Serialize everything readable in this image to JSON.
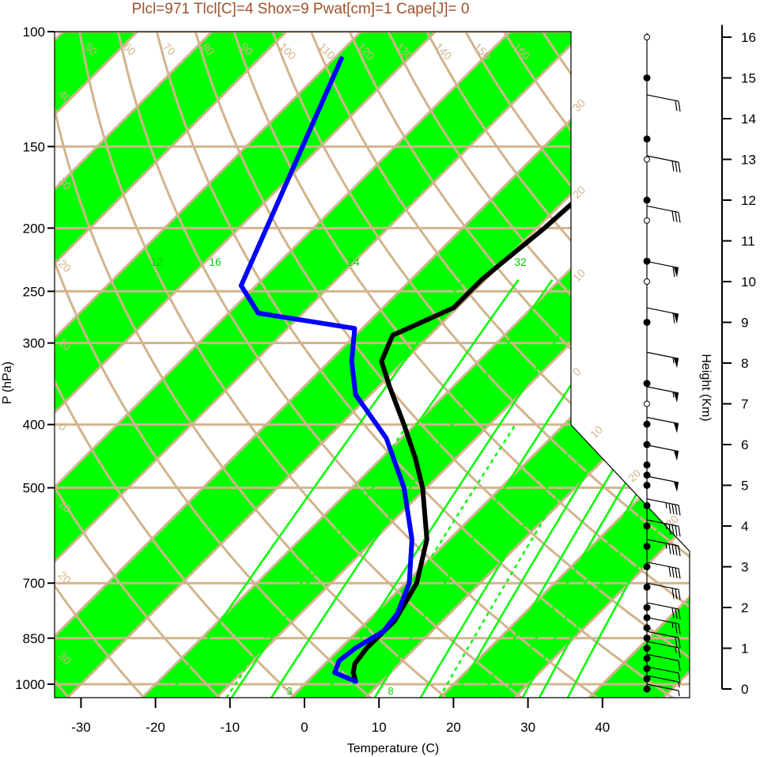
{
  "chart_data": {
    "type": "line",
    "title": "Plcl=971 Tlcl[C]=4 Shox=9 Pwat[cm]=1 Cape[J]= 0",
    "xlabel": "Temperature (C)",
    "ylabel": "P (hPa)",
    "y2label": "Height (Km)",
    "x_ticks": [
      "-30",
      "-20",
      "-10",
      "0",
      "10",
      "20",
      "30",
      "40"
    ],
    "x_tick_values": [
      -30,
      -20,
      -10,
      0,
      10,
      20,
      30,
      40
    ],
    "p_ticks": [
      "100",
      "150",
      "200",
      "250",
      "300",
      "400",
      "500",
      "700",
      "850",
      "1000"
    ],
    "p_tick_values": [
      100,
      150,
      200,
      250,
      300,
      400,
      500,
      700,
      850,
      1000
    ],
    "height_ticks": [
      "0",
      "1",
      "2",
      "3",
      "4",
      "5",
      "6",
      "7",
      "8",
      "9",
      "10",
      "11",
      "12",
      "13",
      "14",
      "15",
      "16"
    ],
    "height_tick_values": [
      0,
      1,
      2,
      3,
      4,
      5,
      6,
      7,
      8,
      9,
      10,
      11,
      12,
      13,
      14,
      15,
      16
    ],
    "isotherm_labels": {
      "top": [
        "50",
        "60",
        "70",
        "80",
        "90",
        "100",
        "110",
        "120",
        "130",
        "140",
        "150",
        "160"
      ],
      "right": [
        "30",
        "20",
        "10",
        "0",
        "10",
        "20",
        "30"
      ],
      "left": [
        "40",
        "30",
        "20",
        "10",
        "0",
        "10",
        "20",
        "30"
      ]
    },
    "mixing_ratio_labels": [
      "12",
      "16",
      "24",
      "32"
    ],
    "mixing_ratio_dashed_labels": [
      "3",
      "8"
    ],
    "colors": {
      "temperature": "#000000",
      "dewpoint": "#0000ff",
      "bands": "#00ff00",
      "isobars_isotherms": "#d2b48c",
      "mixing_ratio": "#00ff00",
      "title": "#a0522d"
    },
    "series": [
      {
        "name": "",
        "role": "temperature",
        "points": [
          {
            "p": 990,
            "t": 6.5
          },
          {
            "p": 960,
            "t": 5.0
          },
          {
            "p": 930,
            "t": 4.0
          },
          {
            "p": 880,
            "t": 3.5
          },
          {
            "p": 800,
            "t": 3.6
          },
          {
            "p": 700,
            "t": 1.5
          },
          {
            "p": 600,
            "t": -3.0
          },
          {
            "p": 500,
            "t": -10.5
          },
          {
            "p": 450,
            "t": -15.5
          },
          {
            "p": 400,
            "t": -21.5
          },
          {
            "p": 350,
            "t": -28.5
          },
          {
            "p": 320,
            "t": -33.0
          },
          {
            "p": 292,
            "t": -35.0
          },
          {
            "p": 265,
            "t": -30.5
          },
          {
            "p": 240,
            "t": -30.5
          },
          {
            "p": 225,
            "t": -30.0
          },
          {
            "p": 200,
            "t": -29.0
          },
          {
            "p": 180,
            "t": -28.5
          },
          {
            "p": 145,
            "t": -27.5
          },
          {
            "p": 120,
            "t": -28.0
          },
          {
            "p": 110,
            "t": -28.0
          }
        ]
      },
      {
        "name": "",
        "role": "dewpoint",
        "points": [
          {
            "p": 990,
            "t": 6.5
          },
          {
            "p": 960,
            "t": 2.5
          },
          {
            "p": 920,
            "t": 1.5
          },
          {
            "p": 880,
            "t": 2.0
          },
          {
            "p": 830,
            "t": 3.5
          },
          {
            "p": 780,
            "t": 3.0
          },
          {
            "p": 700,
            "t": 0.5
          },
          {
            "p": 600,
            "t": -5.0
          },
          {
            "p": 500,
            "t": -13.0
          },
          {
            "p": 420,
            "t": -22.0
          },
          {
            "p": 360,
            "t": -32.0
          },
          {
            "p": 320,
            "t": -37.0
          },
          {
            "p": 285,
            "t": -41.0
          },
          {
            "p": 270,
            "t": -56.0
          },
          {
            "p": 245,
            "t": -62.0
          },
          {
            "p": 110,
            "t": -79.0
          }
        ]
      }
    ],
    "wind": {
      "levels": [
        {
          "p": 1000,
          "dir": 225,
          "spd": 5
        },
        {
          "p": 970,
          "dir": 225,
          "spd": 5
        },
        {
          "p": 940,
          "dir": 240,
          "spd": 10
        },
        {
          "p": 900,
          "dir": 250,
          "spd": 10
        },
        {
          "p": 860,
          "dir": 260,
          "spd": 15
        },
        {
          "p": 830,
          "dir": 265,
          "spd": 20
        },
        {
          "p": 790,
          "dir": 270,
          "spd": 25
        },
        {
          "p": 750,
          "dir": 270,
          "spd": 30
        },
        {
          "p": 700,
          "dir": 270,
          "spd": 30
        },
        {
          "p": 650,
          "dir": 270,
          "spd": 40
        },
        {
          "p": 600,
          "dir": 275,
          "spd": 45
        },
        {
          "p": 560,
          "dir": 275,
          "spd": 45
        },
        {
          "p": 520,
          "dir": 275,
          "spd": 45
        },
        {
          "p": 480,
          "dir": 275,
          "spd": 50
        },
        {
          "p": 430,
          "dir": 275,
          "spd": 50
        },
        {
          "p": 390,
          "dir": 275,
          "spd": 50
        },
        {
          "p": 350,
          "dir": 275,
          "spd": 55
        },
        {
          "p": 310,
          "dir": 275,
          "spd": 55
        },
        {
          "p": 265,
          "dir": 275,
          "spd": 60
        },
        {
          "p": 225,
          "dir": 275,
          "spd": 60
        },
        {
          "p": 185,
          "dir": 275,
          "spd": 30
        },
        {
          "p": 155,
          "dir": 275,
          "spd": 30
        },
        {
          "p": 125,
          "dir": 275,
          "spd": 20
        }
      ],
      "filled_marker_heights_km": [
        0,
        0.25,
        0.5,
        0.75,
        1.0,
        1.25,
        1.5,
        1.75,
        2.0,
        2.5,
        3.0,
        3.5,
        4.0,
        4.5,
        5.0,
        5.25,
        5.5,
        6.0,
        6.5,
        7.5,
        9.0,
        10.5,
        12.0,
        13.5,
        15.0
      ],
      "open_marker_heights_km": [
        7.0,
        10.0,
        11.5,
        13.0,
        16.0
      ]
    }
  }
}
